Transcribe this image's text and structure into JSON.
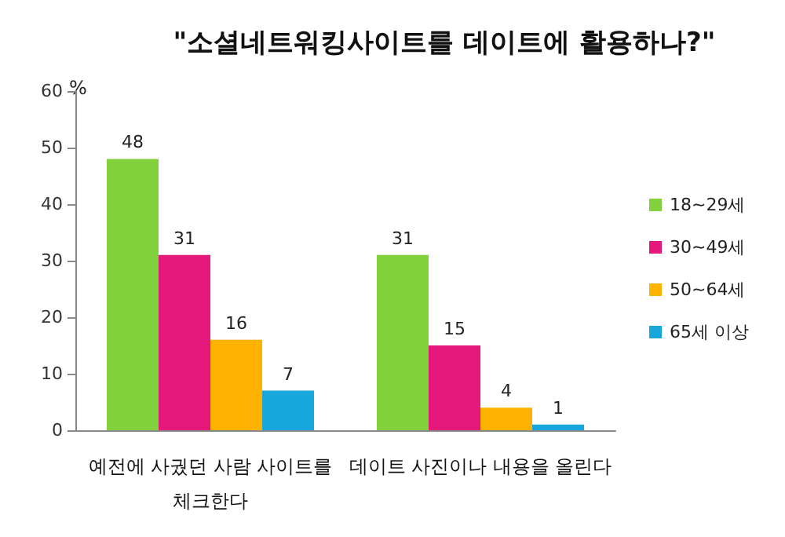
{
  "chart_data": {
    "type": "bar",
    "title": "\"소셜네트워킹사이트를 데이트에 활용하나?\"",
    "ylabel": "%",
    "categories": [
      "예전에 사궜던 사람 사이트를 체크한다",
      "데이트 사진이나 내용을 올린다"
    ],
    "series": [
      {
        "name": "18~29세",
        "color": "#80d13b",
        "values": [
          48,
          31
        ]
      },
      {
        "name": "30~49세",
        "color": "#e5187c",
        "values": [
          31,
          15
        ]
      },
      {
        "name": "50~64세",
        "color": "#ffb300",
        "values": [
          16,
          4
        ]
      },
      {
        "name": "65세 이상",
        "color": "#17a7dd",
        "values": [
          7,
          1
        ]
      }
    ],
    "ylim": [
      0,
      60
    ],
    "yticks": [
      0,
      10,
      20,
      30,
      40,
      50,
      60
    ],
    "grid": false,
    "legend": "right",
    "data_labels": true
  }
}
